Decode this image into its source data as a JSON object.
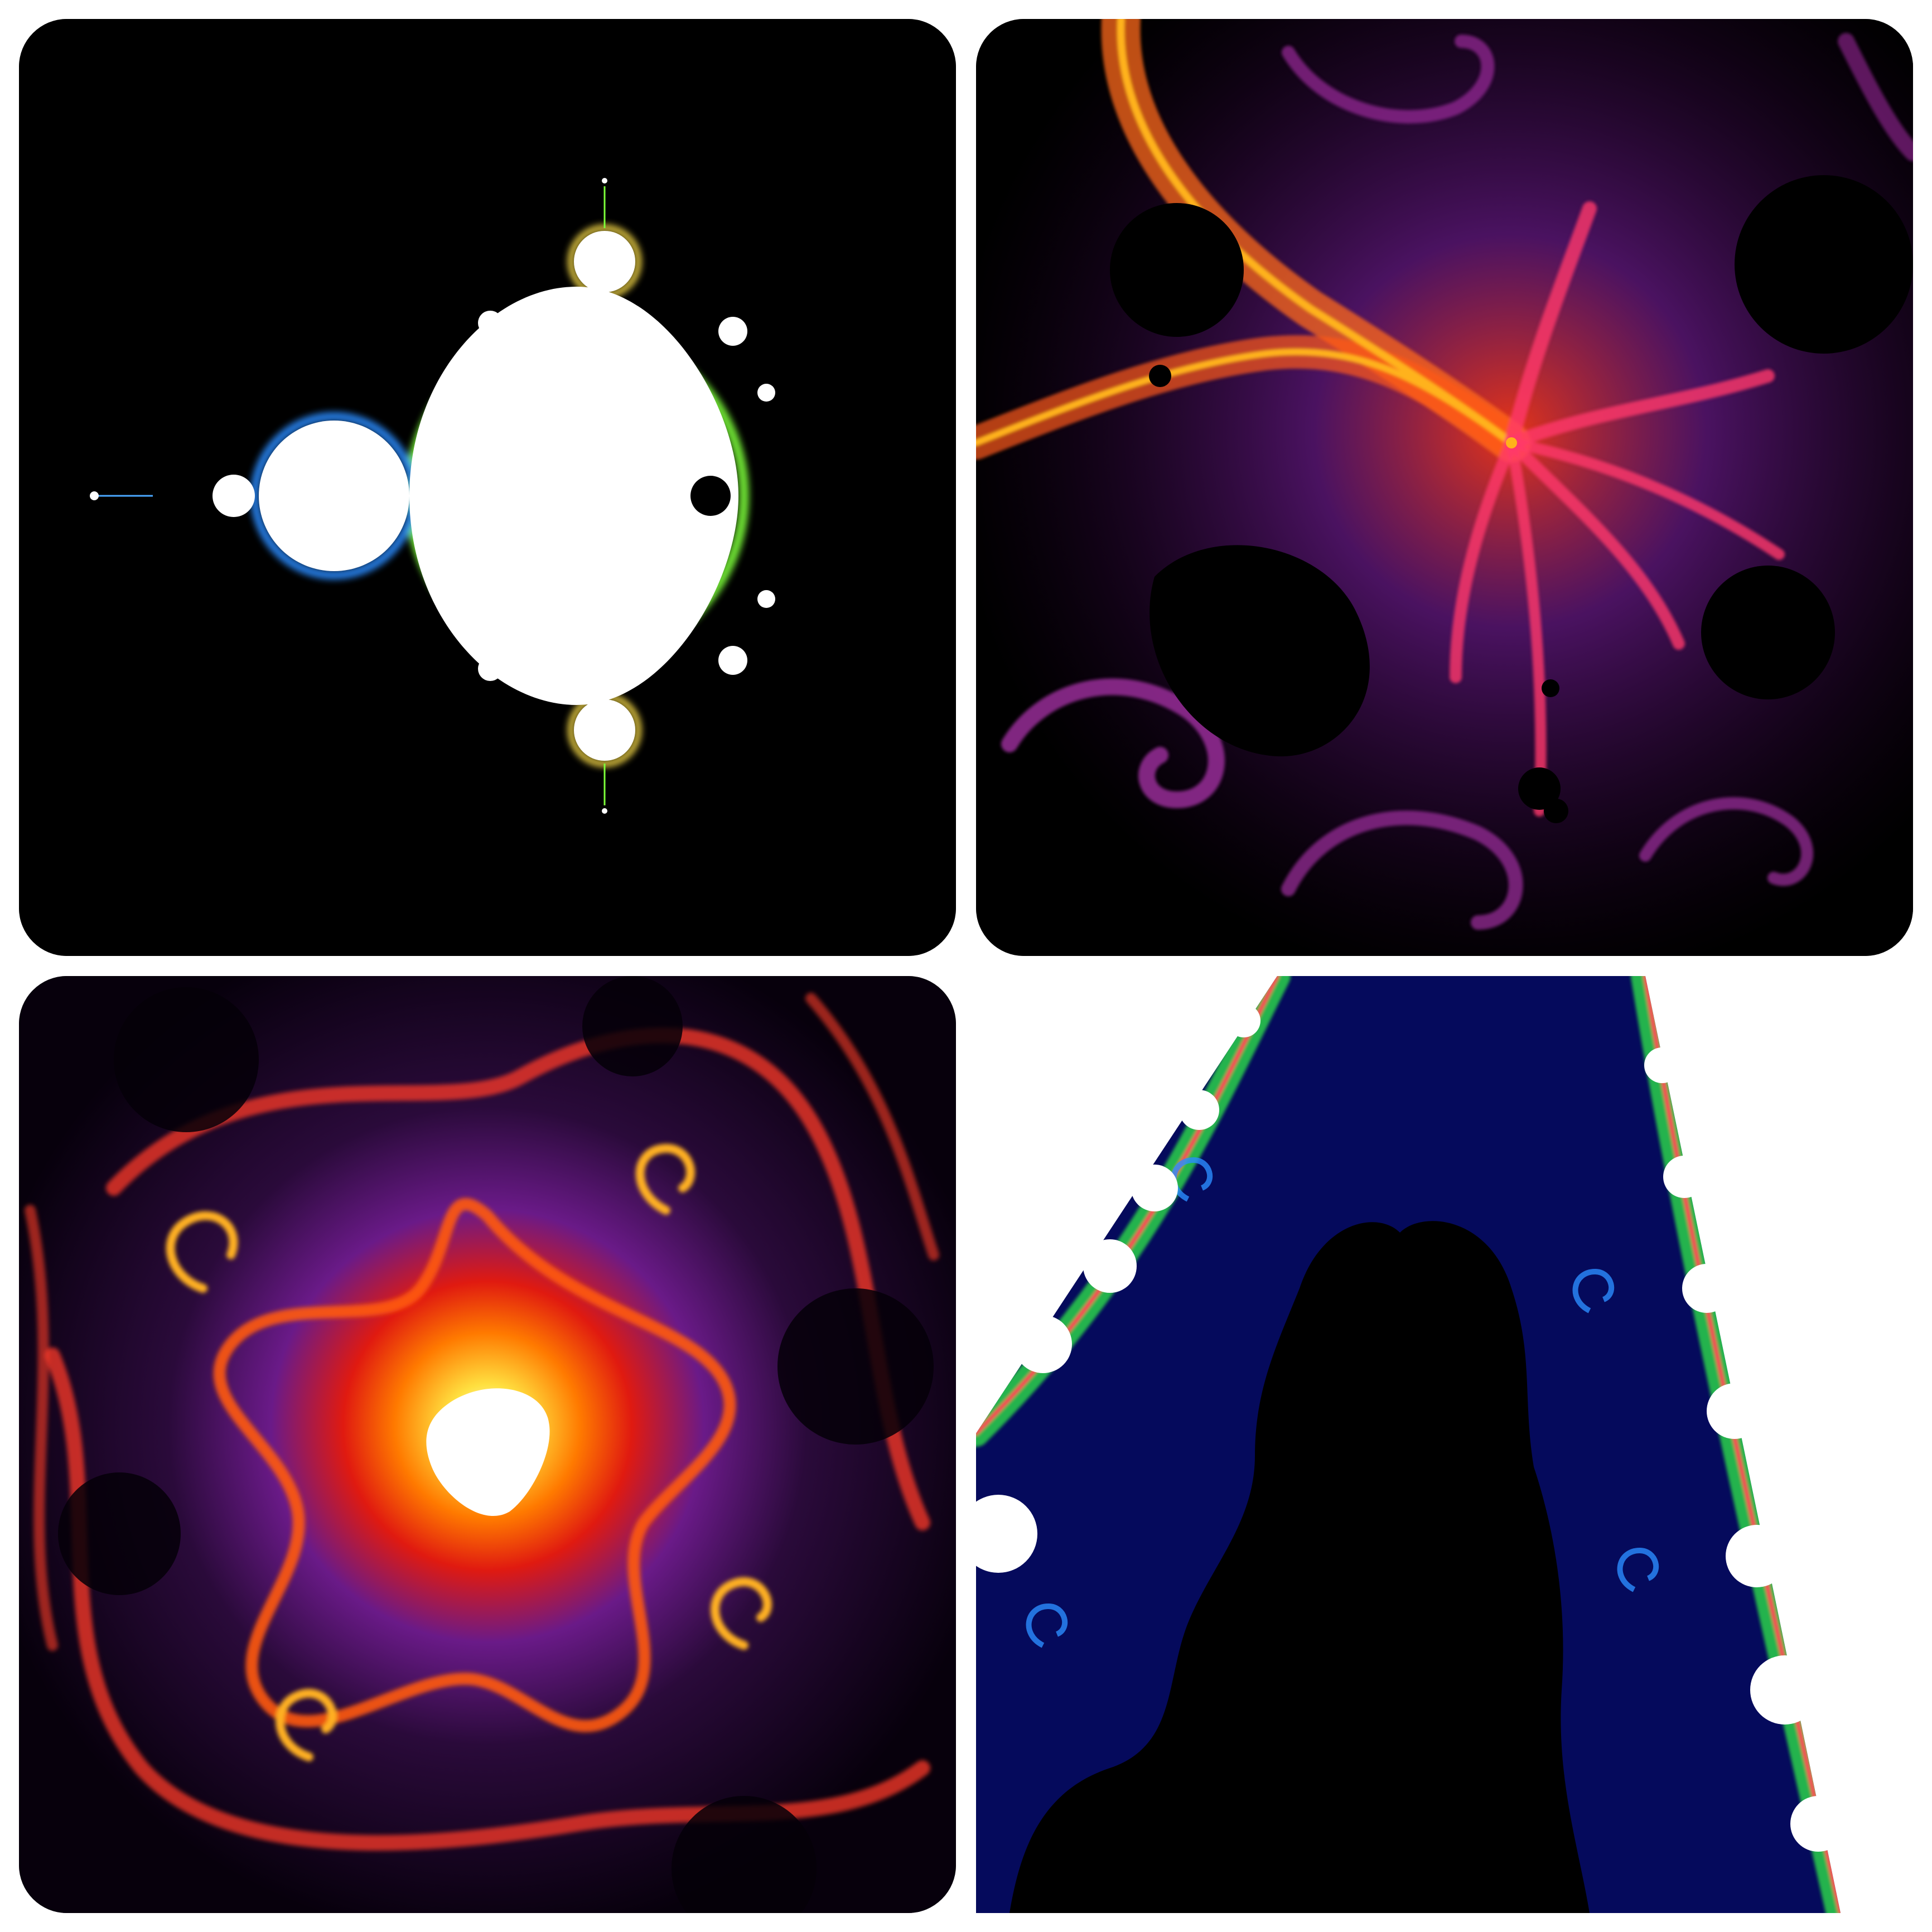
{
  "gallery": {
    "tiles": [
      {
        "subject": "mandelbrot-set-overview",
        "palette": [
          "#000000",
          "#ffffff",
          "#2a8cff",
          "#7dff3a",
          "#ffe14a"
        ]
      },
      {
        "subject": "seahorse-valley-spiral-tendrils",
        "palette": [
          "#000000",
          "#2a0033",
          "#6a1a8a",
          "#ff3a1a",
          "#ffb21a"
        ]
      },
      {
        "subject": "minibrot-with-spiral-filaments",
        "palette": [
          "#000000",
          "#12001c",
          "#5a1a78",
          "#ff2a00",
          "#ffe040",
          "#ffffff"
        ]
      },
      {
        "subject": "boundary-edge-with-bulbs",
        "palette": [
          "#ffffff",
          "#000000",
          "#050a5c",
          "#2ad14a",
          "#ff3355"
        ]
      }
    ]
  }
}
